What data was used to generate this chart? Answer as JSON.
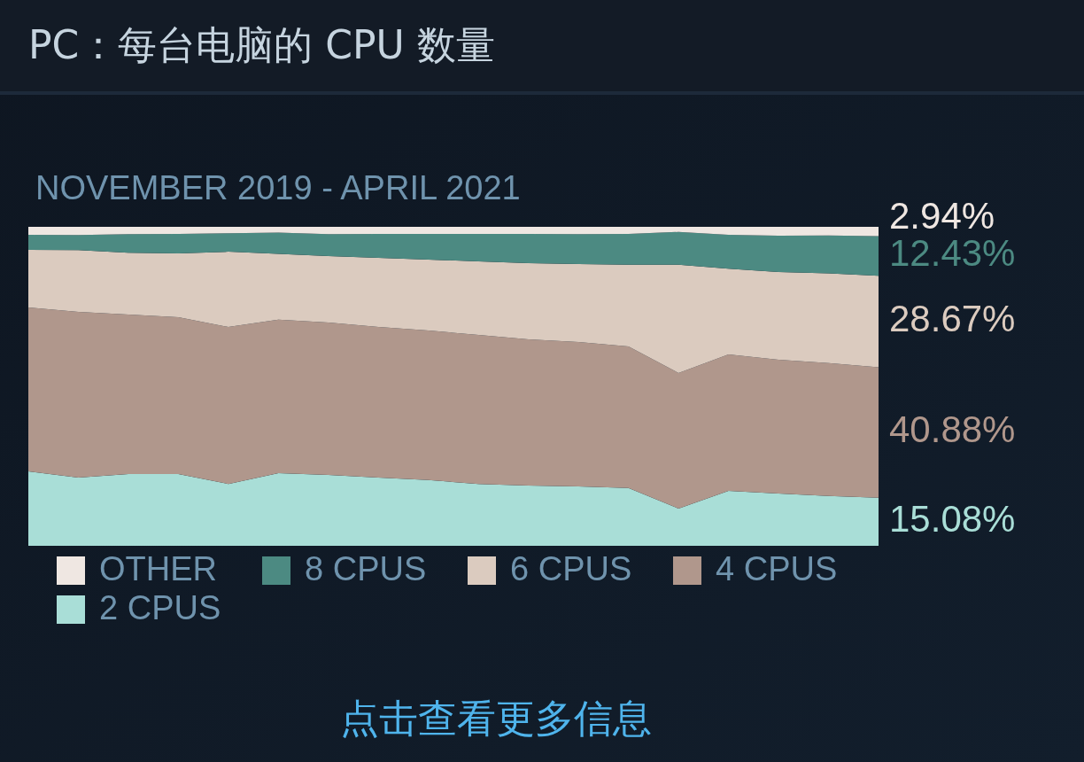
{
  "chart_data": {
    "type": "area",
    "title": "PC：每台电脑的 CPU 数量",
    "subtitle": "NOVEMBER 2019 - APRIL 2021",
    "annotations": [
      "点击查看更多信息"
    ],
    "stacked": true,
    "legend": "bottom",
    "categories": [
      null,
      null,
      null,
      null,
      null,
      null,
      null,
      null,
      null,
      null,
      null,
      null,
      null,
      null,
      null,
      null,
      null,
      null
    ],
    "series": [
      {
        "name": "2 CPUS",
        "color": "#a9ded7",
        "values": [
          23.3,
          21.4,
          22.5,
          22.5,
          19.4,
          22.8,
          22.2,
          21.4,
          20.6,
          19.4,
          18.9,
          18.6,
          18.1,
          11.7,
          17.2,
          16.4,
          15.6,
          15.08
        ],
        "value_labels": [
          null,
          null,
          null,
          null,
          null,
          null,
          null,
          null,
          null,
          null,
          null,
          null,
          null,
          null,
          null,
          null,
          null,
          "15.08%"
        ]
      },
      {
        "name": "4 CPUS",
        "color": "#b0978c",
        "values": [
          51.4,
          51.9,
          50.0,
          49.2,
          49.2,
          48.1,
          47.8,
          47.2,
          46.9,
          46.7,
          45.8,
          45.3,
          44.4,
          42.5,
          42.8,
          41.9,
          41.7,
          40.88
        ],
        "value_labels": [
          null,
          null,
          null,
          null,
          null,
          null,
          null,
          null,
          null,
          null,
          null,
          null,
          null,
          null,
          null,
          null,
          null,
          "40.88%"
        ]
      },
      {
        "name": "6 CPUS",
        "color": "#dbcbbf",
        "values": [
          18.1,
          19.4,
          19.4,
          20.0,
          23.6,
          20.6,
          20.8,
          21.7,
          22.2,
          23.1,
          23.9,
          24.4,
          25.6,
          33.9,
          26.9,
          27.5,
          28.1,
          28.67
        ],
        "value_labels": [
          null,
          null,
          null,
          null,
          null,
          null,
          null,
          null,
          null,
          null,
          null,
          null,
          null,
          null,
          null,
          null,
          null,
          "28.67%"
        ]
      },
      {
        "name": "8 CPUS",
        "color": "#4c8a82",
        "values": [
          4.7,
          4.7,
          5.8,
          6.1,
          5.8,
          6.7,
          6.9,
          7.5,
          8.1,
          8.6,
          9.2,
          9.4,
          9.7,
          10.3,
          10.6,
          11.4,
          11.9,
          12.43
        ],
        "value_labels": [
          null,
          null,
          null,
          null,
          null,
          null,
          null,
          null,
          null,
          null,
          null,
          null,
          null,
          null,
          null,
          null,
          null,
          "12.43%"
        ]
      },
      {
        "name": "OTHER",
        "color": "#efe7e2",
        "values": [
          2.5,
          2.6,
          2.3,
          2.2,
          2.0,
          1.8,
          2.3,
          2.2,
          2.2,
          2.2,
          2.2,
          2.3,
          2.2,
          1.6,
          2.5,
          2.8,
          2.7,
          2.94
        ],
        "value_labels": [
          null,
          null,
          null,
          null,
          null,
          null,
          null,
          null,
          null,
          null,
          null,
          null,
          null,
          null,
          null,
          null,
          null,
          "2.94%"
        ]
      }
    ]
  }
}
